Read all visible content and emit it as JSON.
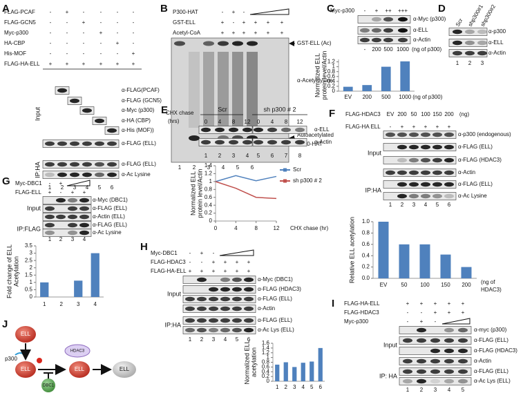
{
  "panels": {
    "A": {
      "letter": "A",
      "rows": [
        "FLAG-PCAF",
        "FLAG-GCN5",
        "Myc-p300",
        "HA-CBP",
        "His-MOF",
        "FLAG-HA-ELL"
      ],
      "cells": [
        [
          "-",
          "+",
          "-",
          "-",
          "-",
          "-"
        ],
        [
          "-",
          "-",
          "+",
          "-",
          "-",
          "-"
        ],
        [
          "-",
          "-",
          "-",
          "+",
          "-",
          "-"
        ],
        [
          "-",
          "-",
          "-",
          "-",
          "+",
          "-"
        ],
        [
          "-",
          "-",
          "-",
          "-",
          "-",
          "+"
        ],
        [
          "+",
          "+",
          "+",
          "+",
          "+",
          "+"
        ]
      ],
      "sections": [
        "Input",
        "IP:HA"
      ],
      "blots": [
        "α-FLAG(PCAF)",
        "α-FLAG (GCN5)",
        "α-Myc (p300)",
        "α-HA (CBP)",
        "α-His (MOF))",
        "α-FLAG (ELL)",
        "α-FLAG (ELL)",
        "α-Ac Lysine"
      ],
      "lanes": [
        "1",
        "2",
        "3",
        "4",
        "5",
        "6"
      ]
    },
    "B": {
      "letter": "B",
      "rows": [
        "P300-HAT",
        "GST-ELL",
        "Acetyl-CoA"
      ],
      "cells": [
        [
          "-",
          "+",
          "-"
        ],
        [
          "+",
          "-",
          "+",
          "+",
          "+",
          "+"
        ],
        [
          "+",
          "+",
          "+",
          "+",
          "+",
          "+"
        ]
      ],
      "blots": [
        "GST-ELL (Ac)",
        "α-Acetyl lysine",
        "Autoacetylated",
        "P300-HAT"
      ],
      "lanes": [
        "1",
        "2",
        "3",
        "4",
        "5",
        "6"
      ]
    },
    "C": {
      "letter": "C",
      "rows": [
        "Myc-p300"
      ],
      "cells": [
        [
          "-",
          "+",
          "++",
          "+++"
        ]
      ],
      "blots": [
        "α-Myc (p300)",
        "α-ELL",
        "α-Actin"
      ],
      "amounts": [
        "-",
        "200",
        "500",
        "1000"
      ],
      "amount_unit": "(ng of p300)"
    },
    "D": {
      "letter": "D",
      "columns": [
        "Scr",
        "shp300#1",
        "shp300#2"
      ],
      "blots": [
        "α-p300",
        "α-ELL",
        "α-Actin"
      ],
      "lanes": [
        "1",
        "2",
        "3"
      ]
    },
    "E": {
      "letter": "E",
      "label": [
        "CHX chase",
        "(hrs)"
      ],
      "groups": [
        "Scr",
        "sh p300 # 2"
      ],
      "times": [
        "0",
        "4",
        "8",
        "12",
        "0",
        "4",
        "8",
        "12"
      ],
      "blots": [
        "α-ELL",
        "α-Actin"
      ],
      "lanes": [
        "1",
        "2",
        "3",
        "4",
        "5",
        "6",
        "7",
        "8"
      ]
    },
    "F": {
      "letter": "F",
      "rows": [
        "FLAG-HDAC3",
        "FLAG-HA ELL"
      ],
      "cells": [
        [
          "EV",
          "200",
          "50",
          "100",
          "150",
          "200",
          "(ng)"
        ],
        [
          "-",
          "+",
          "+",
          "+",
          "+",
          "+"
        ]
      ],
      "sections": [
        "Input",
        "IP:HA"
      ],
      "blots": [
        "α-p300 (endogenous)",
        "α-FLAG (ELL)",
        "α-FLAG (HDAC3)",
        "α-Actin",
        "α-FLAG (ELL)",
        "α-Ac Lysine"
      ],
      "lanes": [
        "1",
        "2",
        "3",
        "4",
        "5",
        "6"
      ]
    },
    "G": {
      "letter": "G",
      "rows": [
        "Myc-DBC1",
        "FLAG-ELL"
      ],
      "cells": [
        [
          "-",
          "+"
        ],
        [
          "+",
          "-",
          "+",
          "+"
        ]
      ],
      "sections": [
        "Input",
        "IP:FLAG"
      ],
      "blots": [
        "α-Myc (DBC1)",
        "α-FLAG (ELL)",
        "α-Actin (ELL)",
        "α-FLAG (ELL)",
        "α-Ac Lysine"
      ],
      "lanes": [
        "1",
        "2",
        "3",
        "4"
      ]
    },
    "H": {
      "letter": "H",
      "rows": [
        "Myc-DBC1",
        "FLAG-HDAC3",
        "FLAG-HA-ELL"
      ],
      "cells": [
        [
          "-",
          "+",
          "-"
        ],
        [
          "-",
          "-",
          "+",
          "+",
          "+",
          "+"
        ],
        [
          "+",
          "+",
          "+",
          "+",
          "+",
          "+"
        ]
      ],
      "sections": [
        "Input",
        "IP:HA"
      ],
      "blots": [
        "α-Myc (DBC1)",
        "α-FLAG (HDAC3)",
        "α-FLAG (ELL)",
        "α-Actin",
        "α-FLAG (ELL)",
        "α-Ac Lys (ELL)"
      ],
      "lanes": [
        "1",
        "2",
        "3",
        "4",
        "5",
        "6"
      ]
    },
    "I": {
      "letter": "I",
      "rows": [
        "FLAG-HA-ELL",
        "FLAG-HDAC3",
        "Myc-p300"
      ],
      "cells": [
        [
          "+",
          "+",
          "+",
          "+",
          "+"
        ],
        [
          "-",
          "-",
          "+",
          "+",
          "+"
        ],
        [
          "-",
          "+",
          "-"
        ]
      ],
      "sections": [
        "Input",
        "IP: HA"
      ],
      "blots": [
        "α-myc (p300)",
        "α-FLAG (ELL)",
        "α-FLAG (HDAC3)",
        "α-Actin",
        "α-FLAG (ELL)",
        "α-Ac Lys (ELL)"
      ],
      "lanes": [
        "1",
        "2",
        "3",
        "4",
        "5"
      ]
    },
    "J": {
      "letter": "J",
      "nodes": [
        "ELL",
        "p300",
        "ELL",
        "HDAC3",
        "ELL",
        "DBC1",
        "ELL"
      ]
    }
  },
  "chart_data": [
    {
      "type": "bar",
      "ylabel": [
        "Normalized ELL",
        "protein level/Actin"
      ],
      "categories": [
        "EV",
        "200",
        "500",
        "1000"
      ],
      "x_unit": [
        "(ng of p300)"
      ],
      "values": [
        0.18,
        0.25,
        1.0,
        1.22
      ],
      "color": "#4f81bd",
      "ylim": [
        0,
        1.3
      ],
      "yticks": [
        0,
        0.2,
        0.4,
        0.6,
        0.8,
        1,
        1.2
      ]
    },
    {
      "type": "line",
      "ylabel": [
        "Normalized ELL",
        "protein level/Actin"
      ],
      "xlabel": "CHX chase (hr)",
      "x": [
        0,
        4,
        8,
        12
      ],
      "xlim": [
        0,
        12
      ],
      "xticks": [
        0,
        4,
        8,
        12
      ],
      "series": [
        {
          "name": "Scr",
          "color": "#4f81bd",
          "values": [
            1.0,
            1.15,
            1.02,
            1.13
          ]
        },
        {
          "name": "sh p300 # 2",
          "color": "#c0504d",
          "values": [
            1.0,
            0.83,
            0.6,
            0.57
          ]
        }
      ],
      "ylim": [
        0,
        1.4
      ],
      "yticks": [
        0,
        0.2,
        0.4,
        0.6,
        0.8,
        1,
        1.2,
        1.4
      ],
      "legend": "right"
    },
    {
      "type": "bar",
      "ylabel": [
        "Relative ELL acetylation"
      ],
      "categories": [
        "EV",
        "50",
        "100",
        "150",
        "200"
      ],
      "x_unit": [
        "(ng of",
        "HDAC3)"
      ],
      "values": [
        1.0,
        0.6,
        0.6,
        0.42,
        0.2
      ],
      "color": "#4f81bd",
      "ylim": [
        0,
        1.0
      ],
      "yticks": [
        {
          "value": 0,
          "label": "0.0"
        },
        {
          "value": 0.2,
          "label": "0.2"
        },
        {
          "value": 0.4,
          "label": "0.4"
        },
        {
          "value": 0.6,
          "label": "0.6"
        },
        {
          "value": 0.8,
          "label": "0.8"
        },
        {
          "value": 1.0,
          "label": "1.0"
        }
      ]
    },
    {
      "type": "bar",
      "ylabel": [
        "Fold change of ELL",
        "Acetylation"
      ],
      "categories": [
        "1",
        "2",
        "3",
        "4"
      ],
      "values": [
        1.0,
        0,
        1.12,
        3.0
      ],
      "color": "#4f81bd",
      "ylim": [
        0,
        3.5
      ],
      "yticks": [
        0,
        0.5,
        1,
        1.5,
        2,
        2.5,
        3,
        3.5
      ]
    },
    {
      "type": "bar",
      "ylabel": [
        "Normalized ELL",
        "acetylation"
      ],
      "categories": [
        "1",
        "2",
        "3",
        "4",
        "5",
        "6"
      ],
      "values": [
        0.7,
        0.8,
        0.6,
        0.78,
        0.83,
        1.4
      ],
      "color": "#4f81bd",
      "ylim": [
        0,
        1.6
      ],
      "yticks": [
        0,
        0.2,
        0.4,
        0.6,
        0.8,
        1,
        1.2,
        1.4,
        1.6
      ]
    }
  ]
}
